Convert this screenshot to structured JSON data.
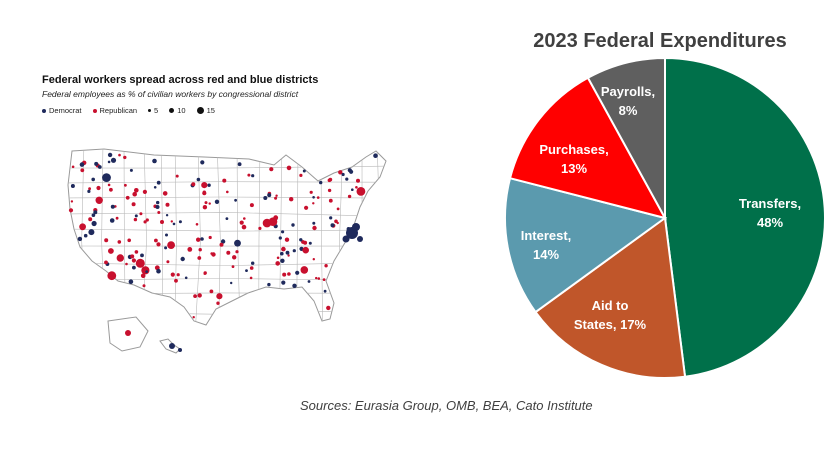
{
  "map": {
    "title": "Federal workers spread across red and blue districts",
    "subtitle": "Federal employees as % of civilian workers by congressional district",
    "legend": {
      "democrat": "Democrat",
      "republican": "Republican",
      "sizes": [
        "5",
        "10",
        "15"
      ]
    },
    "colors": {
      "democrat": "#1f2a5c",
      "republican": "#c8102e",
      "border": "#b8b8b8"
    }
  },
  "chart_data": {
    "type": "pie",
    "title": "2023 Federal Expenditures",
    "slices": [
      {
        "label": "Transfers,",
        "pct": "48%",
        "value": 48,
        "color": "#00704a"
      },
      {
        "label": "Aid to",
        "label2": "States, 17%",
        "value": 17,
        "color": "#c0562a"
      },
      {
        "label": "Interest,",
        "pct": "14%",
        "value": 14,
        "color": "#5b9aae"
      },
      {
        "label": "Purchases,",
        "pct": "13%",
        "value": 13,
        "color": "#ff0000"
      },
      {
        "label": "Payrolls,",
        "pct": "8%",
        "value": 8,
        "color": "#5f5f5f"
      }
    ]
  },
  "sources": "Sources: Eurasia Group, OMB, BEA,  Cato Institute"
}
